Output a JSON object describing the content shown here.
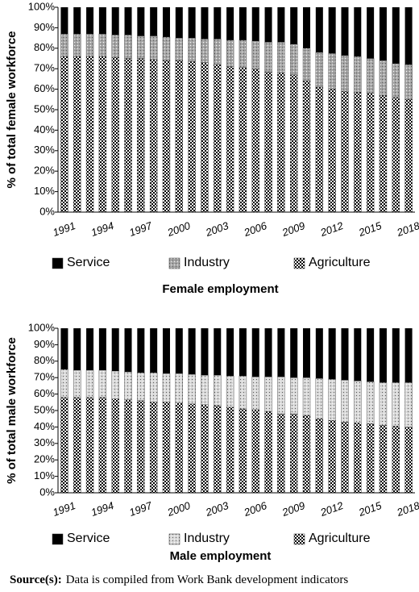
{
  "chart_data": [
    {
      "type": "stacked_bar",
      "title": "Female employment",
      "y_label": "% of total female workforce",
      "categories": [
        "1991",
        null,
        null,
        "1994",
        null,
        null,
        "1997",
        null,
        null,
        "2000",
        null,
        null,
        "2003",
        null,
        null,
        "2006",
        null,
        null,
        "2009",
        null,
        null,
        "2012",
        null,
        null,
        "2015",
        null,
        null,
        "2018"
      ],
      "series": [
        {
          "name": "Agriculture",
          "color": "#000000",
          "pattern": "checker",
          "values": [
            76,
            76,
            76,
            76,
            75.5,
            75,
            75,
            74.5,
            74,
            74,
            73.5,
            73,
            72,
            71,
            70.5,
            70,
            68.5,
            68,
            67,
            64,
            61,
            60,
            59,
            58.5,
            58,
            57,
            56,
            55
          ]
        },
        {
          "name": "Industry",
          "color": "#a6a6a6",
          "pattern": "dots",
          "values": [
            11,
            11,
            11,
            11,
            11,
            11.5,
            11,
            11.5,
            11.5,
            11,
            11.5,
            11.5,
            12.5,
            13,
            13.5,
            13.5,
            14.5,
            15,
            15,
            16,
            17,
            17.5,
            17.5,
            17.5,
            17,
            17,
            16.5,
            17
          ]
        },
        {
          "name": "Service",
          "color": "#000000",
          "pattern": "solid",
          "values": [
            13,
            13,
            13,
            13,
            13.5,
            13.5,
            14,
            14,
            14.5,
            15,
            15,
            15.5,
            15.5,
            16,
            16,
            16.5,
            17,
            17,
            18,
            20,
            22,
            22.5,
            23.5,
            24,
            25,
            26,
            27.5,
            28
          ]
        }
      ],
      "ylim": [
        0,
        100
      ],
      "yticks": [
        {
          "value": 0,
          "label": "0%"
        },
        {
          "value": 10,
          "label": "10%"
        },
        {
          "value": 20,
          "label": "20%"
        },
        {
          "value": 30,
          "label": "30%"
        },
        {
          "value": 40,
          "label": "40%"
        },
        {
          "value": 50,
          "label": "50%"
        },
        {
          "value": 60,
          "label": "60%"
        },
        {
          "value": 70,
          "label": "70%"
        },
        {
          "value": 80,
          "label": "80%"
        },
        {
          "value": 90,
          "label": "90%"
        },
        {
          "value": 100,
          "label": "100%"
        }
      ],
      "legend": "bottom"
    },
    {
      "type": "stacked_bar",
      "title": "Male employment",
      "y_label": "% of total male workforce",
      "categories": [
        "1991",
        null,
        null,
        "1994",
        null,
        null,
        "1997",
        null,
        null,
        "2000",
        null,
        null,
        "2003",
        null,
        null,
        "2006",
        null,
        null,
        "2009",
        null,
        null,
        "2012",
        null,
        null,
        "2015",
        null,
        null,
        "2018"
      ],
      "series": [
        {
          "name": "Agriculture",
          "color": "#000000",
          "pattern": "checker",
          "values": [
            58,
            58,
            58,
            58,
            57,
            56.5,
            56,
            55,
            55,
            54.5,
            54,
            53.5,
            53,
            52,
            51,
            50.5,
            49.5,
            48,
            48,
            47,
            45,
            44,
            43,
            42.5,
            42,
            41,
            40.5,
            40
          ]
        },
        {
          "name": "Industry",
          "color": "#d9d9d9",
          "pattern": "dots",
          "values": [
            17,
            16.5,
            16.5,
            16.5,
            17,
            17,
            17,
            18,
            17.5,
            18,
            18,
            18,
            18.5,
            19,
            20,
            20,
            21,
            22.5,
            22,
            23,
            24.5,
            25,
            25.5,
            25.5,
            25.5,
            26,
            26.5,
            27
          ]
        },
        {
          "name": "Service",
          "color": "#000000",
          "pattern": "solid",
          "values": [
            25,
            25.5,
            25.5,
            25.5,
            26,
            26.5,
            27,
            27,
            27.5,
            27.5,
            28,
            28.5,
            28.5,
            29,
            29,
            29.5,
            29.5,
            29.5,
            30,
            30,
            30.5,
            31,
            31.5,
            32,
            32.5,
            33,
            33,
            33
          ]
        }
      ],
      "ylim": [
        0,
        100
      ],
      "yticks": [
        {
          "value": 0,
          "label": "0%"
        },
        {
          "value": 10,
          "label": "10%"
        },
        {
          "value": 20,
          "label": "20%"
        },
        {
          "value": 30,
          "label": "30%"
        },
        {
          "value": 40,
          "label": "40%"
        },
        {
          "value": 50,
          "label": "50%"
        },
        {
          "value": 60,
          "label": "60%"
        },
        {
          "value": 70,
          "label": "70%"
        },
        {
          "value": 80,
          "label": "80%"
        },
        {
          "value": 90,
          "label": "90%"
        },
        {
          "value": 100,
          "label": "100%"
        }
      ],
      "legend": "bottom"
    }
  ],
  "source": {
    "label": "Source(s):",
    "text": "Data is compiled from Work Bank development indicators"
  }
}
